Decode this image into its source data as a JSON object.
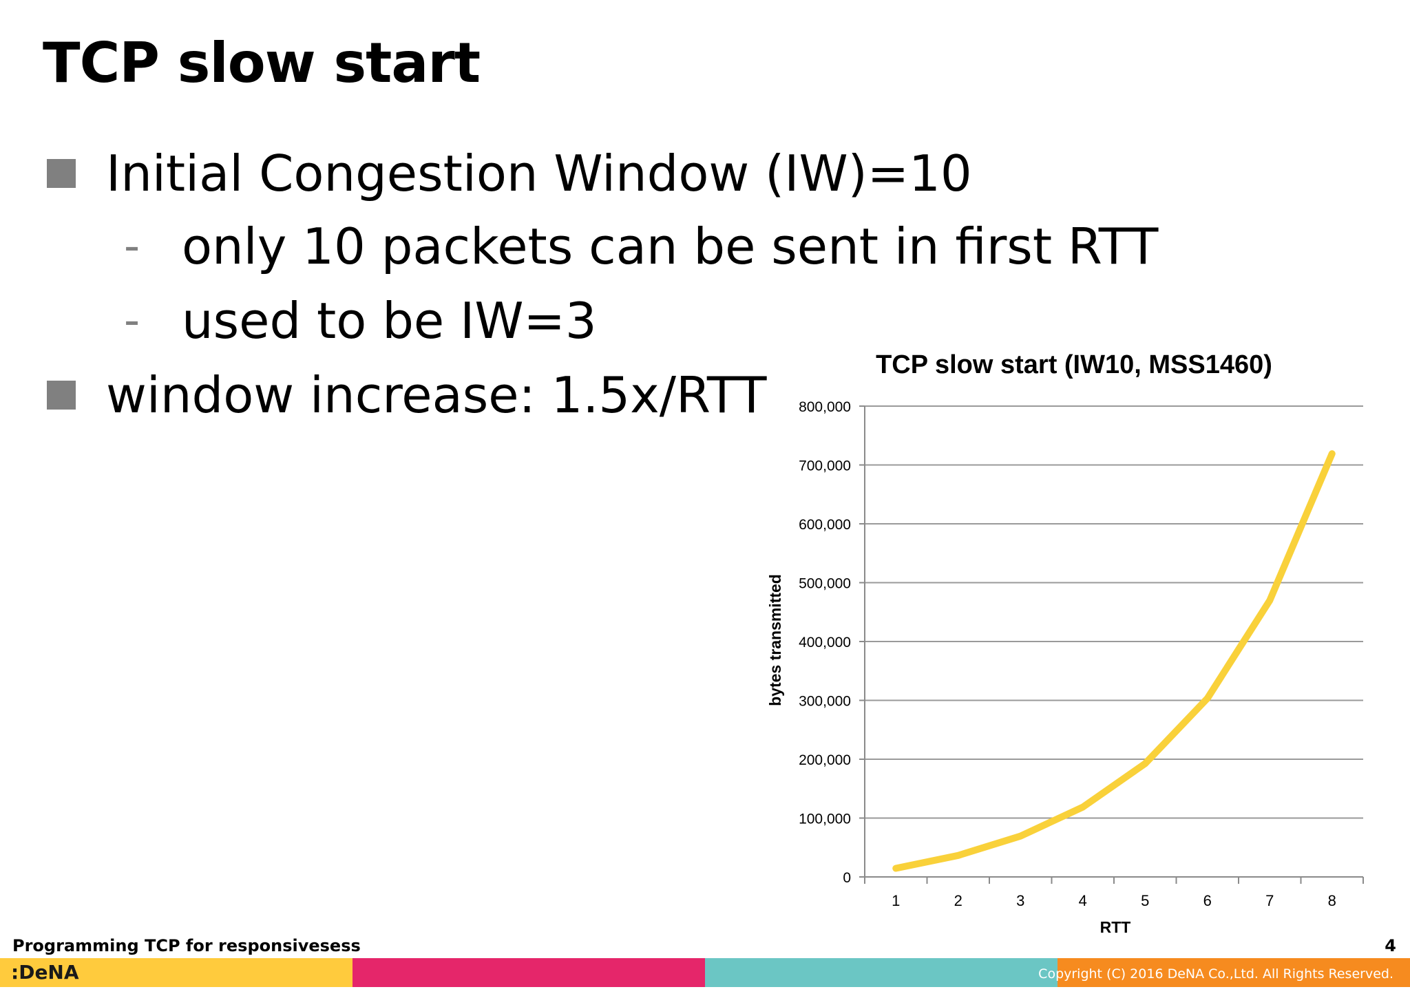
{
  "slide": {
    "title": "TCP slow start",
    "bullets": [
      {
        "text": "Initial Congestion Window (IW)=10"
      },
      {
        "text": "window increase: 1.5x/RTT"
      }
    ],
    "subbullets": [
      {
        "dash": "-",
        "text": "only 10 packets can be sent in first RTT"
      },
      {
        "dash": "-",
        "text": "used to be IW=3"
      }
    ]
  },
  "chart_data": {
    "type": "line",
    "title": "TCP slow start (IW10, MSS1460)",
    "xlabel": "RTT",
    "ylabel": "bytes transmitted",
    "categories": [
      "1",
      "2",
      "3",
      "4",
      "5",
      "6",
      "7",
      "8"
    ],
    "series": [
      {
        "values": [
          14600,
          36500,
          69350,
          118625,
          192538,
          303406,
          469708,
          719170
        ],
        "color": "#f9d13a"
      }
    ],
    "ylim": [
      0,
      800000
    ],
    "yticks": [
      0,
      100000,
      200000,
      300000,
      400000,
      500000,
      600000,
      700000,
      800000
    ],
    "ytick_labels": [
      "0",
      "100,000",
      "200,000",
      "300,000",
      "400,000",
      "500,000",
      "600,000",
      "700,000",
      "800,000"
    ],
    "grid": true,
    "legend": "none"
  },
  "footer": {
    "deck_title": "Programming TCP for responsivesess",
    "page_number": "4",
    "logo": ":DeNA",
    "copyright": "Copyright (C) 2016 DeNA Co.,Ltd. All Rights Reserved.",
    "bar_colors": [
      "#ffcb3d",
      "#e5266a",
      "#6bc6c4",
      "#f68b1f"
    ]
  }
}
